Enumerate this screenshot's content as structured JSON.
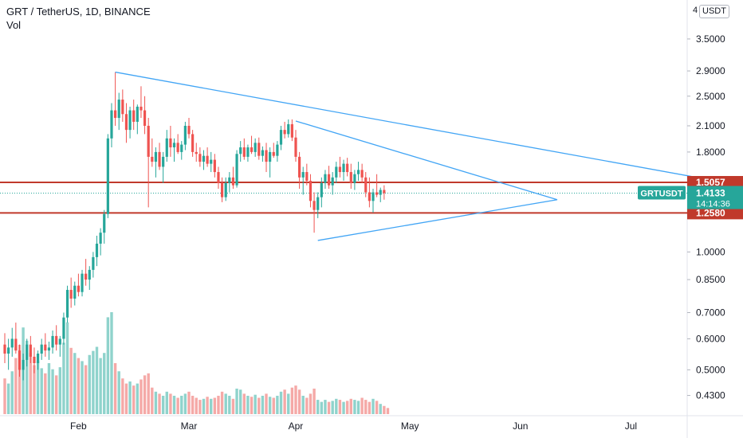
{
  "header": {
    "symbol_line": "GRT / TetherUS, 1D, BINANCE",
    "volume_label": "Vol",
    "currency_badge": "USDT",
    "currency_prefix": "4"
  },
  "colors": {
    "up": "#26a69a",
    "down": "#ef5350",
    "up_vol": "#8fd3cc",
    "down_vol": "#f5a9a7",
    "trendline": "#42a5f5",
    "support_resistance": "#c0392b",
    "last_price_bg": "#26a69a",
    "axis_text": "#131722"
  },
  "chart_data": {
    "type": "candlestick",
    "symbol": "GRTUSDT",
    "scale": "log",
    "ylim": [
      0.4,
      4.2
    ],
    "y_ticks": [
      "3.5000",
      "2.9000",
      "2.5000",
      "2.1000",
      "1.8000",
      "1.0000",
      "0.8500",
      "0.7000",
      "0.6000",
      "0.5000",
      "0.4300"
    ],
    "x_ticks": [
      "Feb",
      "Mar",
      "Apr",
      "May",
      "Jun",
      "Jul"
    ],
    "price_labels": [
      {
        "value": "1.5057",
        "kind": "resistance"
      },
      {
        "value": "1.2580",
        "kind": "support"
      }
    ],
    "last_price": {
      "symbol": "GRTUSDT",
      "value": "1.4133",
      "countdown": "14:14:36"
    },
    "ohlc": [
      [
        0.58,
        0.62,
        0.52,
        0.55
      ],
      [
        0.55,
        0.6,
        0.5,
        0.57
      ],
      [
        0.57,
        0.64,
        0.54,
        0.6
      ],
      [
        0.6,
        0.66,
        0.55,
        0.56
      ],
      [
        0.56,
        0.58,
        0.48,
        0.5
      ],
      [
        0.5,
        0.55,
        0.47,
        0.53
      ],
      [
        0.53,
        0.6,
        0.51,
        0.58
      ],
      [
        0.58,
        0.61,
        0.52,
        0.54
      ],
      [
        0.54,
        0.57,
        0.49,
        0.52
      ],
      [
        0.52,
        0.56,
        0.5,
        0.55
      ],
      [
        0.55,
        0.6,
        0.53,
        0.58
      ],
      [
        0.58,
        0.62,
        0.54,
        0.56
      ],
      [
        0.56,
        0.59,
        0.53,
        0.57
      ],
      [
        0.57,
        0.63,
        0.55,
        0.61
      ],
      [
        0.61,
        0.65,
        0.56,
        0.58
      ],
      [
        0.58,
        0.61,
        0.54,
        0.6
      ],
      [
        0.6,
        0.7,
        0.58,
        0.68
      ],
      [
        0.68,
        0.82,
        0.66,
        0.8
      ],
      [
        0.8,
        0.86,
        0.72,
        0.76
      ],
      [
        0.76,
        0.84,
        0.73,
        0.82
      ],
      [
        0.82,
        0.88,
        0.77,
        0.79
      ],
      [
        0.79,
        0.9,
        0.77,
        0.88
      ],
      [
        0.88,
        0.96,
        0.82,
        0.85
      ],
      [
        0.85,
        0.92,
        0.8,
        0.9
      ],
      [
        0.9,
        1.0,
        0.86,
        0.97
      ],
      [
        0.97,
        1.1,
        0.92,
        1.05
      ],
      [
        1.05,
        1.15,
        0.98,
        1.12
      ],
      [
        1.12,
        1.28,
        1.05,
        1.25
      ],
      [
        1.25,
        2.0,
        1.22,
        1.95
      ],
      [
        1.95,
        2.4,
        1.85,
        2.3
      ],
      [
        2.3,
        2.88,
        2.1,
        2.2
      ],
      [
        2.2,
        2.55,
        2.05,
        2.45
      ],
      [
        2.45,
        2.6,
        2.15,
        2.25
      ],
      [
        2.25,
        2.4,
        1.9,
        2.05
      ],
      [
        2.05,
        2.35,
        1.95,
        2.3
      ],
      [
        2.3,
        2.45,
        2.05,
        2.15
      ],
      [
        2.15,
        2.38,
        2.0,
        2.35
      ],
      [
        2.35,
        2.65,
        2.2,
        2.3
      ],
      [
        2.3,
        2.5,
        2.0,
        2.1
      ],
      [
        2.1,
        2.2,
        1.3,
        1.75
      ],
      [
        1.75,
        1.95,
        1.65,
        1.7
      ],
      [
        1.7,
        1.85,
        1.55,
        1.8
      ],
      [
        1.8,
        1.9,
        1.62,
        1.65
      ],
      [
        1.65,
        1.8,
        1.5,
        1.75
      ],
      [
        1.75,
        2.05,
        1.7,
        1.95
      ],
      [
        1.95,
        2.1,
        1.75,
        1.85
      ],
      [
        1.85,
        1.95,
        1.7,
        1.9
      ],
      [
        1.9,
        2.0,
        1.78,
        1.8
      ],
      [
        1.8,
        1.92,
        1.72,
        1.88
      ],
      [
        1.88,
        2.15,
        1.82,
        2.1
      ],
      [
        2.1,
        2.2,
        1.95,
        2.0
      ],
      [
        2.0,
        2.05,
        1.75,
        1.8
      ],
      [
        1.8,
        1.9,
        1.7,
        1.78
      ],
      [
        1.78,
        1.85,
        1.65,
        1.7
      ],
      [
        1.7,
        1.82,
        1.62,
        1.76
      ],
      [
        1.76,
        1.85,
        1.65,
        1.68
      ],
      [
        1.68,
        1.8,
        1.6,
        1.72
      ],
      [
        1.72,
        1.78,
        1.55,
        1.6
      ],
      [
        1.6,
        1.65,
        1.45,
        1.5
      ],
      [
        1.5,
        1.55,
        1.34,
        1.38
      ],
      [
        1.38,
        1.55,
        1.35,
        1.5
      ],
      [
        1.5,
        1.6,
        1.42,
        1.55
      ],
      [
        1.55,
        1.65,
        1.45,
        1.48
      ],
      [
        1.48,
        1.82,
        1.46,
        1.78
      ],
      [
        1.78,
        1.92,
        1.7,
        1.85
      ],
      [
        1.85,
        1.95,
        1.72,
        1.75
      ],
      [
        1.75,
        1.88,
        1.7,
        1.85
      ],
      [
        1.85,
        1.98,
        1.78,
        1.8
      ],
      [
        1.8,
        1.95,
        1.75,
        1.9
      ],
      [
        1.9,
        1.96,
        1.72,
        1.76
      ],
      [
        1.76,
        1.86,
        1.7,
        1.82
      ],
      [
        1.82,
        1.9,
        1.6,
        1.7
      ],
      [
        1.7,
        1.85,
        1.55,
        1.8
      ],
      [
        1.8,
        1.9,
        1.74,
        1.76
      ],
      [
        1.76,
        1.92,
        1.7,
        1.88
      ],
      [
        1.88,
        2.1,
        1.82,
        2.05
      ],
      [
        2.05,
        2.15,
        1.95,
        2.0
      ],
      [
        2.0,
        2.18,
        1.96,
        2.12
      ],
      [
        2.12,
        2.18,
        1.92,
        1.96
      ],
      [
        1.96,
        2.05,
        1.7,
        1.75
      ],
      [
        1.75,
        1.8,
        1.45,
        1.55
      ],
      [
        1.55,
        1.65,
        1.4,
        1.6
      ],
      [
        1.6,
        1.68,
        1.48,
        1.52
      ],
      [
        1.52,
        1.58,
        1.3,
        1.35
      ],
      [
        1.35,
        1.42,
        1.12,
        1.28
      ],
      [
        1.28,
        1.42,
        1.22,
        1.38
      ],
      [
        1.38,
        1.55,
        1.3,
        1.5
      ],
      [
        1.5,
        1.62,
        1.45,
        1.58
      ],
      [
        1.58,
        1.66,
        1.45,
        1.48
      ],
      [
        1.48,
        1.6,
        1.4,
        1.55
      ],
      [
        1.55,
        1.7,
        1.5,
        1.65
      ],
      [
        1.65,
        1.75,
        1.55,
        1.6
      ],
      [
        1.6,
        1.72,
        1.52,
        1.68
      ],
      [
        1.68,
        1.74,
        1.56,
        1.6
      ],
      [
        1.6,
        1.68,
        1.45,
        1.5
      ],
      [
        1.5,
        1.62,
        1.44,
        1.58
      ],
      [
        1.58,
        1.7,
        1.52,
        1.62
      ],
      [
        1.62,
        1.68,
        1.5,
        1.55
      ],
      [
        1.55,
        1.6,
        1.38,
        1.42
      ],
      [
        1.42,
        1.55,
        1.3,
        1.35
      ],
      [
        1.35,
        1.45,
        1.26,
        1.42
      ],
      [
        1.42,
        1.58,
        1.38,
        1.4
      ],
      [
        1.4,
        1.46,
        1.34,
        1.44
      ],
      [
        1.44,
        1.48,
        1.36,
        1.4133
      ]
    ],
    "volume": [
      0.35,
      0.3,
      0.42,
      0.55,
      0.68,
      0.85,
      0.72,
      0.6,
      0.48,
      0.52,
      0.45,
      0.4,
      0.5,
      0.44,
      0.38,
      0.46,
      0.7,
      0.9,
      0.65,
      0.6,
      0.55,
      0.52,
      0.48,
      0.58,
      0.62,
      0.66,
      0.55,
      0.6,
      0.95,
      1.0,
      0.5,
      0.42,
      0.35,
      0.3,
      0.32,
      0.28,
      0.3,
      0.34,
      0.38,
      0.4,
      0.26,
      0.22,
      0.2,
      0.18,
      0.22,
      0.2,
      0.18,
      0.16,
      0.18,
      0.2,
      0.22,
      0.18,
      0.16,
      0.14,
      0.15,
      0.17,
      0.15,
      0.16,
      0.18,
      0.22,
      0.2,
      0.18,
      0.15,
      0.25,
      0.24,
      0.2,
      0.18,
      0.17,
      0.19,
      0.16,
      0.18,
      0.2,
      0.17,
      0.16,
      0.18,
      0.22,
      0.24,
      0.2,
      0.26,
      0.28,
      0.24,
      0.18,
      0.16,
      0.2,
      0.25,
      0.14,
      0.12,
      0.14,
      0.12,
      0.13,
      0.15,
      0.14,
      0.12,
      0.13,
      0.15,
      0.14,
      0.13,
      0.16,
      0.14,
      0.12,
      0.15,
      0.13,
      0.1,
      0.08,
      0.06
    ],
    "trendlines": [
      {
        "name": "upper-wedge-line",
        "from": {
          "bar": 30,
          "price": 2.88
        },
        "to": {
          "bar": 198,
          "price": 1.49
        }
      },
      {
        "name": "descending-line",
        "from": {
          "bar": 79,
          "price": 2.16
        },
        "to": {
          "bar": 150,
          "price": 1.36
        }
      },
      {
        "name": "ascending-line",
        "from": {
          "bar": 85,
          "price": 1.07
        },
        "to": {
          "bar": 150,
          "price": 1.36
        }
      }
    ],
    "horizontal_lines": [
      1.5057,
      1.258
    ],
    "last_price_line": 1.4133
  }
}
